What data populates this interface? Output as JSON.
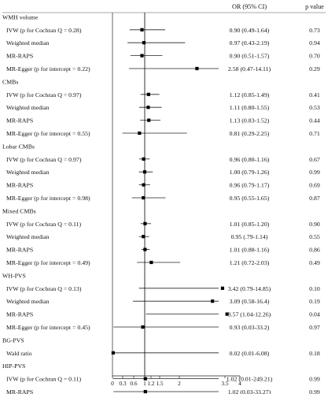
{
  "chart_data": {
    "type": "forest",
    "columns": {
      "estimate": "OR (95% CI)",
      "pvalue": "p value"
    },
    "null_value": 1,
    "xlim": [
      0,
      4
    ],
    "x_ticks": [
      0,
      0.3,
      0.6,
      1,
      1.2,
      1.5,
      2,
      3.5,
      4
    ],
    "x_tick_labels": [
      "0",
      "0.3",
      "0.6",
      "1",
      "1.2",
      "1.5",
      "2",
      "3.5",
      "4"
    ],
    "groups": [
      {
        "title": "WMH volume",
        "rows": [
          {
            "label": "IVW (p for Cochran Q = 0.28)",
            "or": 0.9,
            "lo": 0.49,
            "hi": 1.64,
            "ci_text": "0.90 (0.49-1.64)",
            "p": "0.73"
          },
          {
            "label": "Weighted median",
            "or": 0.97,
            "lo": 0.43,
            "hi": 2.19,
            "ci_text": "0.97 (0.43-2.19)",
            "p": "0.94"
          },
          {
            "label": "MR-RAPS",
            "or": 0.9,
            "lo": 0.51,
            "hi": 1.57,
            "ci_text": "0.90 (0.51-1.57)",
            "p": "0.70"
          },
          {
            "label": "MR-Egger (p for intercept = 0.22)",
            "or": 2.58,
            "lo": 0.47,
            "hi": 14.11,
            "ci_text": "2.58 (0.47-14.11)",
            "p": "0.29"
          }
        ]
      },
      {
        "title": "CMBs",
        "rows": [
          {
            "label": "IVW (p for Cochran Q = 0.97)",
            "or": 1.12,
            "lo": 0.85,
            "hi": 1.49,
            "ci_text": "1.12 (0.85-1.49)",
            "p": "0.41"
          },
          {
            "label": "Weighted median",
            "or": 1.11,
            "lo": 0.8,
            "hi": 1.55,
            "ci_text": "1.11 (0.80-1.55)",
            "p": "0.53"
          },
          {
            "label": "MR-RAPS",
            "or": 1.13,
            "lo": 0.83,
            "hi": 1.52,
            "ci_text": "1.13 (0.83-1.52)",
            "p": "0.44"
          },
          {
            "label": "MR-Egger (p for intercept = 0.55)",
            "or": 0.81,
            "lo": 0.29,
            "hi": 2.25,
            "ci_text": "0.81 (0.29-2.25)",
            "p": "0.71"
          }
        ]
      },
      {
        "title": "Lobar CMBs",
        "rows": [
          {
            "label": "IVW (p for Cochran Q = 0.97)",
            "or": 0.96,
            "lo": 0.8,
            "hi": 1.16,
            "ci_text": "0.96 (0.80-1.16)",
            "p": "0.67"
          },
          {
            "label": "Weighted median",
            "or": 1.0,
            "lo": 0.79,
            "hi": 1.26,
            "ci_text": "1.00 (0.79-1.26)",
            "p": "0.99"
          },
          {
            "label": "MR-RAPS",
            "or": 0.96,
            "lo": 0.79,
            "hi": 1.17,
            "ci_text": "0.96 (0.79-1.17)",
            "p": "0.69"
          },
          {
            "label": "MR-Egger (p for intercept = 0.98)",
            "or": 0.95,
            "lo": 0.55,
            "hi": 1.65,
            "ci_text": "0.95 (0.55-1.65)",
            "p": "0.87"
          }
        ]
      },
      {
        "title": "Mixed CMBs",
        "rows": [
          {
            "label": "IVW (p for Cochran Q = 0.11)",
            "or": 1.01,
            "lo": 0.85,
            "hi": 1.2,
            "ci_text": "1.01 (0.85-1.20)",
            "p": "0.90"
          },
          {
            "label": "Weighted median",
            "or": 0.95,
            "lo": 0.79,
            "hi": 1.14,
            "ci_text": "0.95 (.79-1.14)",
            "p": "0.55"
          },
          {
            "label": "MR-RAPS",
            "or": 1.01,
            "lo": 0.88,
            "hi": 1.16,
            "ci_text": "1.01 (0.88-1.16)",
            "p": "0.86"
          },
          {
            "label": "MR-Egger (p for intercept = 0.49)",
            "or": 1.21,
            "lo": 0.72,
            "hi": 2.03,
            "ci_text": "1.21 (0.72-2.03)",
            "p": "0.49"
          }
        ]
      },
      {
        "title": "WH-PVS",
        "rows": [
          {
            "label": "IVW (p for Cochran Q = 0.13)",
            "or": 3.42,
            "lo": 0.79,
            "hi": 14.85,
            "ci_text": "3.42 (0.79-14.85)",
            "p": "0.10"
          },
          {
            "label": "Weighted median",
            "or": 3.09,
            "lo": 0.58,
            "hi": 16.4,
            "ci_text": "3.09 (0.58-16.4)",
            "p": "0.19"
          },
          {
            "label": "MR-RAPS",
            "or": 3.57,
            "lo": 1.04,
            "hi": 12.26,
            "ci_text": "3.57 (1.04-12.26)",
            "p": "0.04"
          },
          {
            "label": "MR-Egger (p for intercept = 0.45)",
            "or": 0.93,
            "lo": 0.03,
            "hi": 33.2,
            "ci_text": "0.93 (0.03-33.2)",
            "p": "0.97"
          }
        ]
      },
      {
        "title": "BG-PVS",
        "rows": [
          {
            "label": "Wald ratio",
            "or": 0.02,
            "lo": 0.01,
            "hi": 6.08,
            "ci_text": "0.02 (0.01-6.08)",
            "p": "0.18"
          }
        ]
      },
      {
        "title": "HIP-PVS",
        "rows": [
          {
            "label": "IVW (p for Cochran Q = 0.11)",
            "or": 1.02,
            "lo": 0.01,
            "hi": 249.21,
            "ci_text": "1.02 (0.01-249.21)",
            "p": "0.99"
          },
          {
            "label": "MR-RAPS",
            "or": 1.02,
            "lo": 0.03,
            "hi": 33.27,
            "ci_text": "1.02 (0.03-33.27)",
            "p": "0.99"
          }
        ]
      }
    ]
  }
}
